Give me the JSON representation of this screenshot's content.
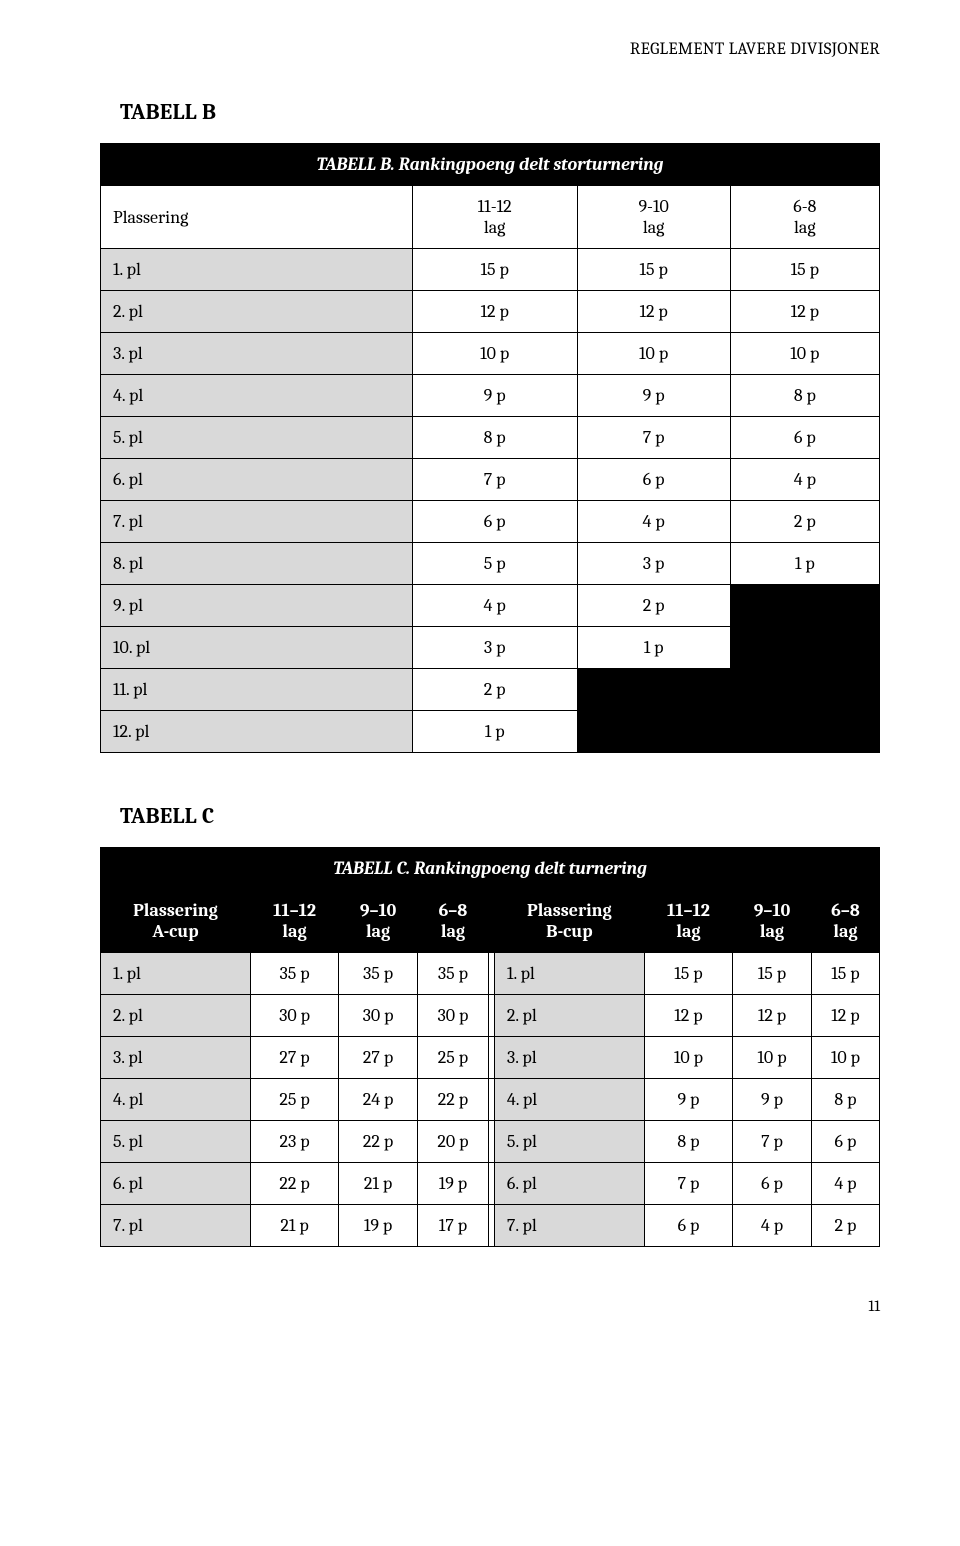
{
  "header": "REGLEMENT LAVERE DIVISJONER",
  "page_number": "11",
  "tableB": {
    "title": "TABELL B",
    "caption": "TABELL B.  Rankingpoeng delt storturnering",
    "columns": [
      "Plassering",
      "11-12\nlag",
      "9-10\nlag",
      "6-8\nlag"
    ],
    "rows": [
      {
        "label": "1. pl",
        "cells": [
          "15 p",
          "15 p",
          "15 p"
        ],
        "black": []
      },
      {
        "label": "2. pl",
        "cells": [
          "12 p",
          "12 p",
          "12 p"
        ],
        "black": []
      },
      {
        "label": "3. pl",
        "cells": [
          "10 p",
          "10 p",
          "10 p"
        ],
        "black": []
      },
      {
        "label": "4. pl",
        "cells": [
          "9 p",
          "9 p",
          "8 p"
        ],
        "black": []
      },
      {
        "label": "5. pl",
        "cells": [
          "8 p",
          "7 p",
          "6 p"
        ],
        "black": []
      },
      {
        "label": "6. pl",
        "cells": [
          "7 p",
          "6 p",
          "4 p"
        ],
        "black": []
      },
      {
        "label": "7. pl",
        "cells": [
          "6 p",
          "4 p",
          "2 p"
        ],
        "black": []
      },
      {
        "label": "8. pl",
        "cells": [
          "5 p",
          "3 p",
          "1 p"
        ],
        "black": []
      },
      {
        "label": "9. pl",
        "cells": [
          "4 p",
          "2 p",
          ""
        ],
        "black": [
          2
        ]
      },
      {
        "label": "10. pl",
        "cells": [
          "3 p",
          "1 p",
          ""
        ],
        "black": [
          2
        ]
      },
      {
        "label": "11. pl",
        "cells": [
          "2 p",
          "",
          ""
        ],
        "black": [
          1,
          2
        ]
      },
      {
        "label": "12. pl",
        "cells": [
          "1 p",
          "",
          ""
        ],
        "black": [
          1,
          2
        ]
      }
    ],
    "shaded_bg": "#d9d9d9"
  },
  "tableC": {
    "title": "TABELL C",
    "caption": "TABELL C. Rankingpoeng delt turnering",
    "left": {
      "columns": [
        "Plassering\nA-cup",
        "11–12\nlag",
        "9–10\nlag",
        "6–8\nlag"
      ],
      "rows": [
        {
          "label": "1. pl",
          "cells": [
            "35 p",
            "35 p",
            "35 p"
          ]
        },
        {
          "label": "2. pl",
          "cells": [
            "30 p",
            "30 p",
            "30 p"
          ]
        },
        {
          "label": "3. pl",
          "cells": [
            "27 p",
            "27 p",
            "25 p"
          ]
        },
        {
          "label": "4. pl",
          "cells": [
            "25 p",
            "24 p",
            "22 p"
          ]
        },
        {
          "label": "5. pl",
          "cells": [
            "23 p",
            "22 p",
            "20 p"
          ]
        },
        {
          "label": "6. pl",
          "cells": [
            "22 p",
            "21 p",
            "19 p"
          ]
        },
        {
          "label": "7. pl",
          "cells": [
            "21 p",
            "19 p",
            "17 p"
          ]
        }
      ]
    },
    "right": {
      "columns": [
        "Plassering\nB-cup",
        "11–12\nlag",
        "9–10\nlag",
        "6–8\nlag"
      ],
      "rows": [
        {
          "label": "1. pl",
          "cells": [
            "15 p",
            "15 p",
            "15 p"
          ]
        },
        {
          "label": "2. pl",
          "cells": [
            "12 p",
            "12 p",
            "12 p"
          ]
        },
        {
          "label": "3. pl",
          "cells": [
            "10 p",
            "10 p",
            "10 p"
          ]
        },
        {
          "label": "4. pl",
          "cells": [
            "9 p",
            "9 p",
            "8 p"
          ]
        },
        {
          "label": "5. pl",
          "cells": [
            "8 p",
            "7 p",
            "6 p"
          ]
        },
        {
          "label": "6. pl",
          "cells": [
            "7 p",
            "6 p",
            "4 p"
          ]
        },
        {
          "label": "7. pl",
          "cells": [
            "6 p",
            "4 p",
            "2 p"
          ]
        }
      ]
    }
  }
}
